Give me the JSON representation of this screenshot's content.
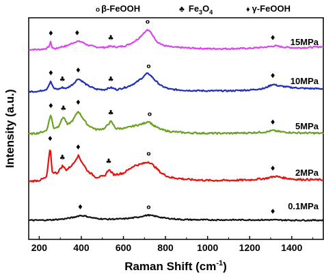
{
  "chart_data": {
    "type": "line",
    "xlabel": "Raman Shift (cm",
    "xlabel_sup": "-1",
    "xlabel_close": ")",
    "ylabel": "Intensity (a.u.)",
    "xlim": [
      150,
      1550
    ],
    "x_ticks": [
      200,
      400,
      600,
      800,
      1000,
      1200,
      1400
    ],
    "y_ticks_shown": false,
    "legend": {
      "placement": "top",
      "items": [
        {
          "marker": "o",
          "label_prefix": "β-FeOOH",
          "sub": ""
        },
        {
          "marker": "♣",
          "label_prefix": "Fe",
          "sub3": "3",
          "mid": "O",
          "sub4": "4"
        },
        {
          "marker": "♦",
          "label_prefix": "γ-FeOOH",
          "sub": ""
        }
      ]
    },
    "series": [
      {
        "name": "15MPa",
        "color": "#d946ef",
        "points": [
          [
            150,
            0.36
          ],
          [
            200,
            0.36
          ],
          [
            230,
            0.38
          ],
          [
            245,
            0.42
          ],
          [
            255,
            0.55
          ],
          [
            262,
            0.4
          ],
          [
            280,
            0.38
          ],
          [
            300,
            0.42
          ],
          [
            330,
            0.45
          ],
          [
            360,
            0.52
          ],
          [
            380,
            0.56
          ],
          [
            400,
            0.55
          ],
          [
            430,
            0.47
          ],
          [
            470,
            0.42
          ],
          [
            510,
            0.41
          ],
          [
            540,
            0.44
          ],
          [
            570,
            0.42
          ],
          [
            610,
            0.45
          ],
          [
            640,
            0.52
          ],
          [
            670,
            0.62
          ],
          [
            700,
            0.78
          ],
          [
            715,
            0.84
          ],
          [
            730,
            0.78
          ],
          [
            760,
            0.55
          ],
          [
            790,
            0.46
          ],
          [
            830,
            0.42
          ],
          [
            900,
            0.4
          ],
          [
            1000,
            0.38
          ],
          [
            1100,
            0.38
          ],
          [
            1200,
            0.39
          ],
          [
            1280,
            0.42
          ],
          [
            1320,
            0.45
          ],
          [
            1360,
            0.42
          ],
          [
            1420,
            0.4
          ],
          [
            1480,
            0.41
          ],
          [
            1550,
            0.43
          ]
        ],
        "annotations": [
          {
            "x": 255,
            "symbol": "♦"
          },
          {
            "x": 380,
            "symbol": "♦"
          },
          {
            "x": 540,
            "symbol": "♣"
          },
          {
            "x": 715,
            "symbol": "o"
          },
          {
            "x": 1310,
            "symbol": "♦"
          }
        ]
      },
      {
        "name": "10MPa",
        "color": "#1f2fb5",
        "points": [
          [
            150,
            0.3
          ],
          [
            200,
            0.31
          ],
          [
            235,
            0.36
          ],
          [
            255,
            0.55
          ],
          [
            268,
            0.38
          ],
          [
            290,
            0.36
          ],
          [
            310,
            0.4
          ],
          [
            330,
            0.38
          ],
          [
            360,
            0.48
          ],
          [
            385,
            0.62
          ],
          [
            405,
            0.55
          ],
          [
            430,
            0.45
          ],
          [
            470,
            0.36
          ],
          [
            510,
            0.35
          ],
          [
            540,
            0.4
          ],
          [
            570,
            0.35
          ],
          [
            620,
            0.42
          ],
          [
            660,
            0.52
          ],
          [
            690,
            0.64
          ],
          [
            710,
            0.74
          ],
          [
            725,
            0.72
          ],
          [
            750,
            0.58
          ],
          [
            780,
            0.44
          ],
          [
            820,
            0.36
          ],
          [
            900,
            0.33
          ],
          [
            1000,
            0.32
          ],
          [
            1100,
            0.32
          ],
          [
            1200,
            0.34
          ],
          [
            1270,
            0.38
          ],
          [
            1310,
            0.48
          ],
          [
            1340,
            0.44
          ],
          [
            1400,
            0.4
          ],
          [
            1460,
            0.38
          ],
          [
            1550,
            0.37
          ]
        ],
        "annotations": [
          {
            "x": 255,
            "symbol": "♦"
          },
          {
            "x": 310,
            "symbol": "♣"
          },
          {
            "x": 385,
            "symbol": "♦"
          },
          {
            "x": 540,
            "symbol": "♣"
          },
          {
            "x": 720,
            "symbol": "o"
          },
          {
            "x": 1310,
            "symbol": "♦"
          }
        ]
      },
      {
        "name": "5MPa",
        "color": "#6aa121",
        "points": [
          [
            150,
            0.32
          ],
          [
            200,
            0.35
          ],
          [
            235,
            0.4
          ],
          [
            255,
            0.75
          ],
          [
            268,
            0.45
          ],
          [
            290,
            0.48
          ],
          [
            315,
            0.7
          ],
          [
            335,
            0.52
          ],
          [
            360,
            0.62
          ],
          [
            385,
            0.82
          ],
          [
            405,
            0.68
          ],
          [
            430,
            0.52
          ],
          [
            470,
            0.42
          ],
          [
            510,
            0.44
          ],
          [
            540,
            0.6
          ],
          [
            565,
            0.44
          ],
          [
            610,
            0.45
          ],
          [
            650,
            0.5
          ],
          [
            690,
            0.54
          ],
          [
            720,
            0.6
          ],
          [
            745,
            0.5
          ],
          [
            780,
            0.42
          ],
          [
            820,
            0.38
          ],
          [
            900,
            0.35
          ],
          [
            1000,
            0.34
          ],
          [
            1100,
            0.34
          ],
          [
            1200,
            0.35
          ],
          [
            1280,
            0.37
          ],
          [
            1310,
            0.4
          ],
          [
            1350,
            0.37
          ],
          [
            1420,
            0.35
          ],
          [
            1550,
            0.34
          ]
        ],
        "annotations": [
          {
            "x": 255,
            "symbol": "♦"
          },
          {
            "x": 315,
            "symbol": "♣"
          },
          {
            "x": 385,
            "symbol": "♦"
          },
          {
            "x": 540,
            "symbol": "♣"
          },
          {
            "x": 725,
            "symbol": "o"
          },
          {
            "x": 1310,
            "symbol": "♦"
          }
        ]
      },
      {
        "name": "2MPa",
        "color": "#e3130f",
        "points": [
          [
            150,
            0.22
          ],
          [
            200,
            0.24
          ],
          [
            235,
            0.3
          ],
          [
            252,
            0.88
          ],
          [
            262,
            0.4
          ],
          [
            285,
            0.38
          ],
          [
            310,
            0.52
          ],
          [
            330,
            0.44
          ],
          [
            360,
            0.55
          ],
          [
            385,
            0.72
          ],
          [
            405,
            0.58
          ],
          [
            430,
            0.42
          ],
          [
            470,
            0.3
          ],
          [
            510,
            0.32
          ],
          [
            530,
            0.45
          ],
          [
            555,
            0.35
          ],
          [
            600,
            0.38
          ],
          [
            650,
            0.52
          ],
          [
            690,
            0.56
          ],
          [
            720,
            0.6
          ],
          [
            745,
            0.52
          ],
          [
            780,
            0.38
          ],
          [
            820,
            0.3
          ],
          [
            900,
            0.26
          ],
          [
            1000,
            0.24
          ],
          [
            1100,
            0.24
          ],
          [
            1200,
            0.25
          ],
          [
            1280,
            0.28
          ],
          [
            1320,
            0.32
          ],
          [
            1360,
            0.29
          ],
          [
            1420,
            0.26
          ],
          [
            1550,
            0.25
          ]
        ],
        "annotations": [
          {
            "x": 252,
            "symbol": "♦"
          },
          {
            "x": 310,
            "symbol": "♣"
          },
          {
            "x": 385,
            "symbol": "♦"
          },
          {
            "x": 530,
            "symbol": "♣"
          },
          {
            "x": 720,
            "symbol": "o"
          },
          {
            "x": 1310,
            "symbol": "♦"
          }
        ]
      },
      {
        "name": "0.1MPa",
        "color": "#111111",
        "points": [
          [
            150,
            0.2
          ],
          [
            200,
            0.2
          ],
          [
            260,
            0.21
          ],
          [
            320,
            0.24
          ],
          [
            360,
            0.28
          ],
          [
            395,
            0.34
          ],
          [
            420,
            0.32
          ],
          [
            460,
            0.26
          ],
          [
            520,
            0.23
          ],
          [
            600,
            0.24
          ],
          [
            660,
            0.28
          ],
          [
            700,
            0.33
          ],
          [
            720,
            0.35
          ],
          [
            750,
            0.32
          ],
          [
            800,
            0.26
          ],
          [
            880,
            0.22
          ],
          [
            1000,
            0.21
          ],
          [
            1100,
            0.21
          ],
          [
            1200,
            0.21
          ],
          [
            1300,
            0.21
          ],
          [
            1400,
            0.2
          ],
          [
            1550,
            0.2
          ]
        ],
        "annotations": [
          {
            "x": 395,
            "symbol": "♦"
          },
          {
            "x": 720,
            "symbol": "o"
          },
          {
            "x": 1310,
            "symbol": "♦"
          }
        ]
      }
    ]
  }
}
